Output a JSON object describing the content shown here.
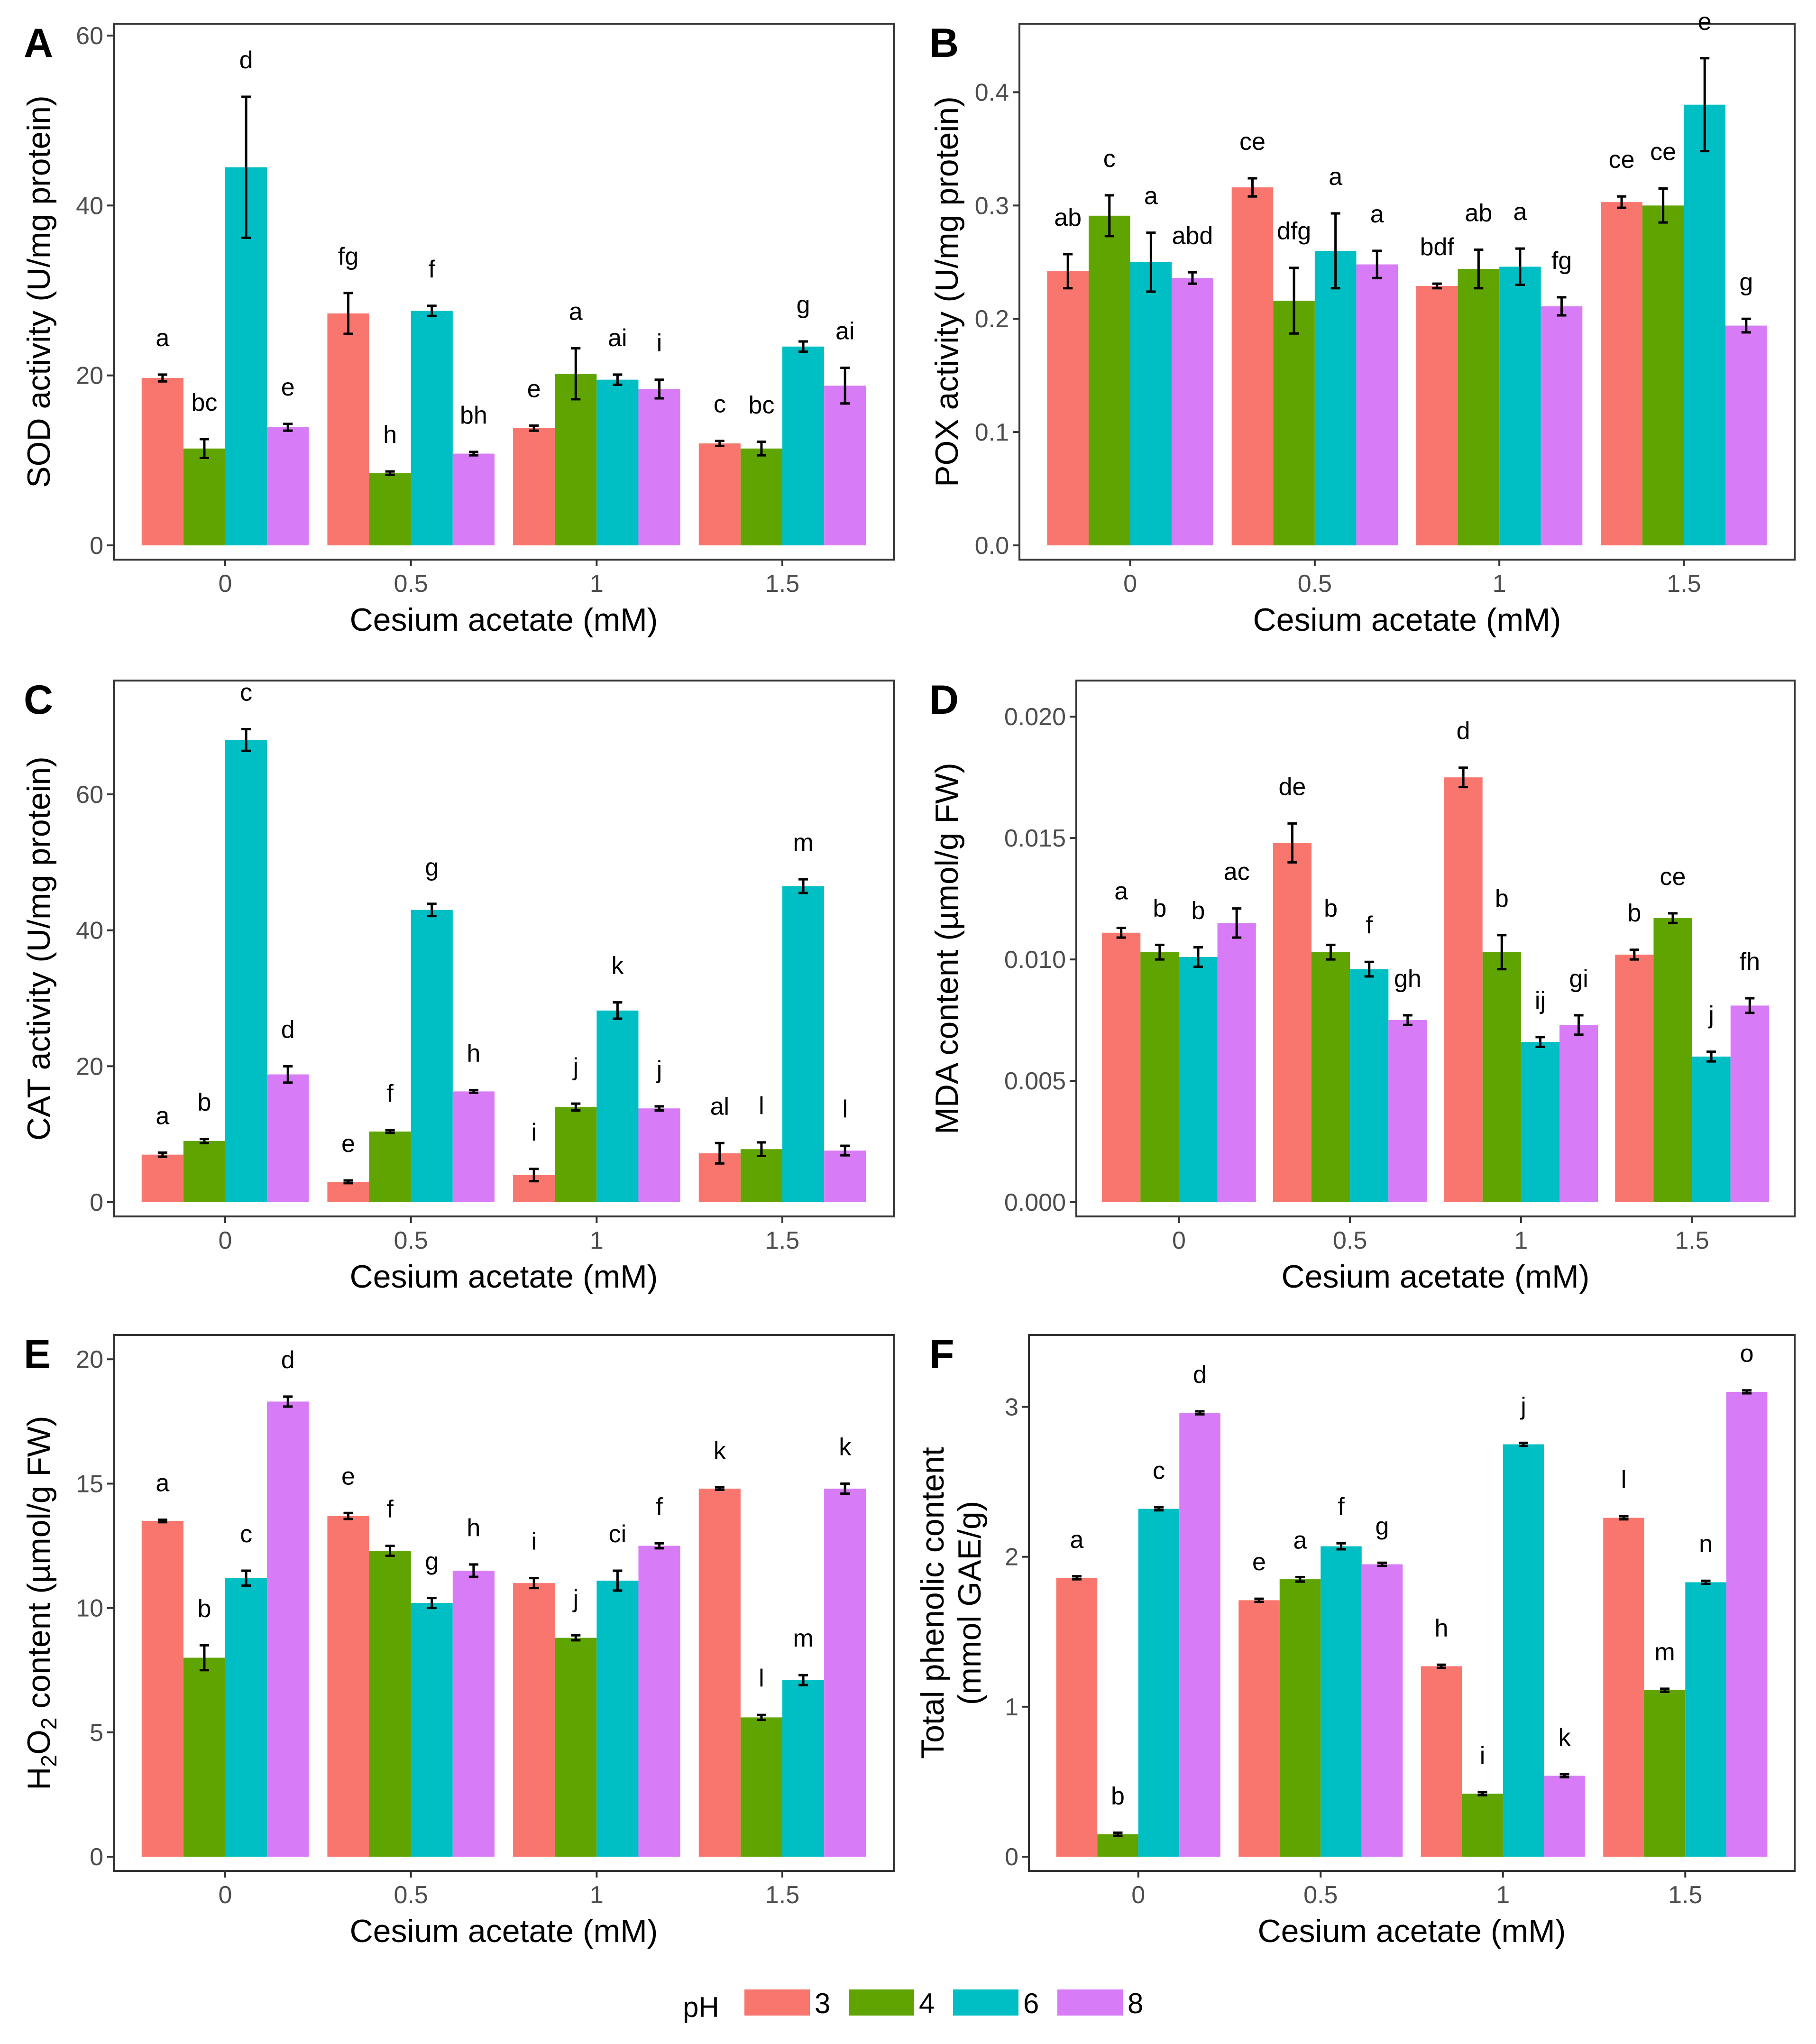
{
  "chart_data": [
    {
      "type": "bar",
      "panel": "A",
      "xlabel": "Cesium acetate (mM)",
      "ylabel": "SOD activity (U/mg protein)",
      "categories": [
        "0",
        "0.5",
        "1",
        "1.5"
      ],
      "ylim": [
        0,
        60
      ],
      "yticks": [
        "0",
        "20",
        "40",
        "60"
      ],
      "ytick_values": [
        0,
        20,
        40,
        60
      ],
      "series": [
        {
          "name": "3",
          "values": [
            19.7,
            27.3,
            13.8,
            12.0
          ],
          "errors": [
            0.4,
            2.4,
            0.3,
            0.3
          ],
          "letters": [
            "a",
            "fg",
            "e",
            "c"
          ]
        },
        {
          "name": "4",
          "values": [
            11.4,
            8.5,
            20.2,
            11.4
          ],
          "errors": [
            1.1,
            0.2,
            3.0,
            0.8
          ],
          "letters": [
            "bc",
            "h",
            "a",
            "bc"
          ]
        },
        {
          "name": "6",
          "values": [
            44.5,
            27.6,
            19.5,
            23.4
          ],
          "errors": [
            8.3,
            0.6,
            0.6,
            0.6
          ],
          "letters": [
            "d",
            "f",
            "ai",
            "g"
          ]
        },
        {
          "name": "8",
          "values": [
            13.9,
            10.8,
            18.4,
            18.8
          ],
          "errors": [
            0.4,
            0.2,
            1.1,
            2.1
          ],
          "letters": [
            "e",
            "bh",
            "i",
            "ai"
          ]
        }
      ]
    },
    {
      "type": "bar",
      "panel": "B",
      "xlabel": "Cesium acetate (mM)",
      "ylabel": "POX activity (U/mg protein)",
      "categories": [
        "0",
        "0.5",
        "1",
        "1.5"
      ],
      "ylim": [
        0,
        0.45
      ],
      "yticks": [
        "0.0",
        "0.1",
        "0.2",
        "0.3",
        "0.4"
      ],
      "ytick_values": [
        0,
        0.1,
        0.2,
        0.3,
        0.4
      ],
      "series": [
        {
          "name": "3",
          "values": [
            0.242,
            0.316,
            0.229,
            0.303
          ],
          "errors": [
            0.015,
            0.008,
            0.002,
            0.005
          ],
          "letters": [
            "ab",
            "ce",
            "bdf",
            "ce"
          ]
        },
        {
          "name": "4",
          "values": [
            0.291,
            0.216,
            0.244,
            0.3
          ],
          "errors": [
            0.018,
            0.029,
            0.017,
            0.015
          ],
          "letters": [
            "c",
            "dfg",
            "ab",
            "ce"
          ]
        },
        {
          "name": "6",
          "values": [
            0.25,
            0.26,
            0.246,
            0.389
          ],
          "errors": [
            0.026,
            0.033,
            0.016,
            0.041
          ],
          "letters": [
            "a",
            "a",
            "a",
            "e"
          ]
        },
        {
          "name": "8",
          "values": [
            0.236,
            0.248,
            0.211,
            0.194
          ],
          "errors": [
            0.005,
            0.012,
            0.008,
            0.006
          ],
          "letters": [
            "abd",
            "a",
            "fg",
            "g"
          ]
        }
      ]
    },
    {
      "type": "bar",
      "panel": "C",
      "xlabel": "Cesium acetate (mM)",
      "ylabel": "CAT activity (U/mg protein)",
      "categories": [
        "0",
        "0.5",
        "1",
        "1.5"
      ],
      "ylim": [
        0,
        75
      ],
      "yticks": [
        "0",
        "20",
        "40",
        "60"
      ],
      "ytick_values": [
        0,
        20,
        40,
        60
      ],
      "series": [
        {
          "name": "3",
          "values": [
            7.0,
            3.0,
            4.0,
            7.2
          ],
          "errors": [
            0.3,
            0.2,
            0.9,
            1.5
          ],
          "letters": [
            "a",
            "e",
            "i",
            "al"
          ]
        },
        {
          "name": "4",
          "values": [
            9.0,
            10.4,
            14.0,
            7.8
          ],
          "errors": [
            0.3,
            0.2,
            0.5,
            1.0
          ],
          "letters": [
            "b",
            "f",
            "j",
            "l"
          ]
        },
        {
          "name": "6",
          "values": [
            68.0,
            43.0,
            28.2,
            46.5
          ],
          "errors": [
            1.6,
            0.9,
            1.2,
            1.0
          ],
          "letters": [
            "c",
            "g",
            "k",
            "m"
          ]
        },
        {
          "name": "8",
          "values": [
            18.8,
            16.3,
            13.8,
            7.6
          ],
          "errors": [
            1.2,
            0.2,
            0.3,
            0.7
          ],
          "letters": [
            "d",
            "h",
            "j",
            "l"
          ]
        }
      ]
    },
    {
      "type": "bar",
      "panel": "D",
      "xlabel": "Cesium acetate (mM)",
      "ylabel": "MDA content (µmol/g FW)",
      "categories": [
        "0",
        "0.5",
        "1",
        "1.5"
      ],
      "ylim": [
        0,
        0.021
      ],
      "yticks": [
        "0.000",
        "0.005",
        "0.010",
        "0.015",
        "0.020"
      ],
      "ytick_values": [
        0,
        0.005,
        0.01,
        0.015,
        0.02
      ],
      "series": [
        {
          "name": "3",
          "values": [
            0.0111,
            0.0148,
            0.0175,
            0.0102
          ],
          "errors": [
            0.0002,
            0.0008,
            0.0004,
            0.0002
          ],
          "letters": [
            "a",
            "de",
            "d",
            "b"
          ]
        },
        {
          "name": "4",
          "values": [
            0.0103,
            0.0103,
            0.0103,
            0.0117
          ],
          "errors": [
            0.0003,
            0.0003,
            0.0007,
            0.0002
          ],
          "letters": [
            "b",
            "b",
            "b",
            "ce"
          ]
        },
        {
          "name": "6",
          "values": [
            0.0101,
            0.0096,
            0.0066,
            0.006
          ],
          "errors": [
            0.0004,
            0.0003,
            0.0002,
            0.0002
          ],
          "letters": [
            "b",
            "f",
            "ij",
            "j"
          ]
        },
        {
          "name": "8",
          "values": [
            0.0115,
            0.0075,
            0.0073,
            0.0081
          ],
          "errors": [
            0.0006,
            0.0002,
            0.0004,
            0.0003
          ],
          "letters": [
            "ac",
            "gh",
            "gi",
            "fh"
          ]
        }
      ]
    },
    {
      "type": "bar",
      "panel": "E",
      "xlabel": "Cesium acetate (mM)",
      "ylabel_main": "H",
      "ylabel_sub": "2",
      "ylabel_main2": "O",
      "ylabel_sub2": "2",
      "ylabel_rest": " content (µmol/g FW)",
      "categories": [
        "0",
        "0.5",
        "1",
        "1.5"
      ],
      "ylim": [
        0,
        20.5
      ],
      "yticks": [
        "0",
        "5",
        "10",
        "15",
        "20"
      ],
      "ytick_values": [
        0,
        5,
        10,
        15,
        20
      ],
      "series": [
        {
          "name": "3",
          "values": [
            13.5,
            13.7,
            11.0,
            14.8
          ],
          "errors": [
            0.05,
            0.12,
            0.2,
            0.05
          ],
          "letters": [
            "a",
            "e",
            "i",
            "k"
          ]
        },
        {
          "name": "4",
          "values": [
            8.0,
            12.3,
            8.8,
            5.6
          ],
          "errors": [
            0.5,
            0.2,
            0.1,
            0.1
          ],
          "letters": [
            "b",
            "f",
            "j",
            "l"
          ]
        },
        {
          "name": "6",
          "values": [
            11.2,
            10.2,
            11.1,
            7.1
          ],
          "errors": [
            0.3,
            0.2,
            0.4,
            0.2
          ],
          "letters": [
            "c",
            "g",
            "ci",
            "m"
          ]
        },
        {
          "name": "8",
          "values": [
            18.3,
            11.5,
            12.5,
            14.8
          ],
          "errors": [
            0.2,
            0.25,
            0.1,
            0.2
          ],
          "letters": [
            "d",
            "h",
            "f",
            "k"
          ]
        }
      ]
    },
    {
      "type": "bar",
      "panel": "F",
      "xlabel": "Cesium acetate (mM)",
      "ylabel_line1": "Total phenolic content",
      "ylabel_line2": "(mmol GAE/g)",
      "categories": [
        "0",
        "0.5",
        "1",
        "1.5"
      ],
      "ylim": [
        0,
        3.4
      ],
      "yticks": [
        "0",
        "1",
        "2",
        "3"
      ],
      "ytick_values": [
        0,
        1,
        2,
        3
      ],
      "series": [
        {
          "name": "3",
          "values": [
            1.86,
            1.71,
            1.27,
            2.26
          ],
          "errors": [
            0.01,
            0.01,
            0.01,
            0.01
          ],
          "letters": [
            "a",
            "e",
            "h",
            "l"
          ]
        },
        {
          "name": "4",
          "values": [
            0.15,
            1.85,
            0.42,
            1.11
          ],
          "errors": [
            0.01,
            0.015,
            0.01,
            0.01
          ],
          "letters": [
            "b",
            "a",
            "i",
            "m"
          ]
        },
        {
          "name": "6",
          "values": [
            2.32,
            2.07,
            2.75,
            1.83
          ],
          "errors": [
            0.01,
            0.02,
            0.01,
            0.01
          ],
          "letters": [
            "c",
            "f",
            "j",
            "n"
          ]
        },
        {
          "name": "8",
          "values": [
            2.96,
            1.95,
            0.54,
            3.1
          ],
          "errors": [
            0.01,
            0.01,
            0.01,
            0.01
          ],
          "letters": [
            "d",
            "g",
            "k",
            "o"
          ]
        }
      ]
    }
  ],
  "legend": {
    "title": "pH",
    "items": [
      {
        "label": "3",
        "color": "#F8766D"
      },
      {
        "label": "4",
        "color": "#5FA400"
      },
      {
        "label": "6",
        "color": "#00BFC4"
      },
      {
        "label": "8",
        "color": "#D77BF6"
      }
    ]
  }
}
